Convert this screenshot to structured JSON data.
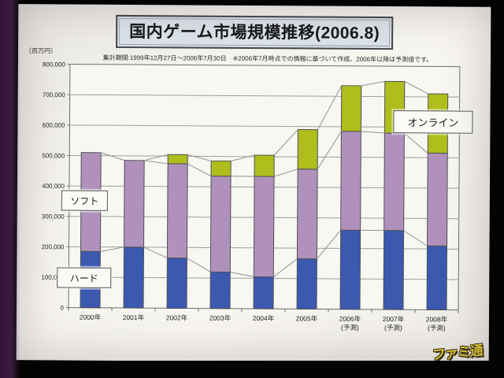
{
  "slide": {
    "title": "国内ゲーム市場規模推移(2006.8)",
    "subtitle": "集計期間:1999年12月27日～2006年7月30日　※2006年7月時点での情報に基づいて作成、2006年以降は予測値です。",
    "logo_text": "ファミ通"
  },
  "chart_data": {
    "type": "bar",
    "stacked": true,
    "title": "国内ゲーム市場規模推移(2006.8)",
    "unit_label": "〔百万円〕",
    "categories": [
      "2000年",
      "2001年",
      "2002年",
      "2003年",
      "2004年",
      "2005年",
      "2006年",
      "2007年",
      "2008年"
    ],
    "category_notes": [
      "",
      "",
      "",
      "",
      "",
      "",
      "(予測)",
      "(予測)",
      "(予測)"
    ],
    "series": [
      {
        "name": "ハード",
        "color": "#3c59b0",
        "values": [
          185000,
          200000,
          165000,
          120000,
          105000,
          165000,
          260000,
          260000,
          210000
        ]
      },
      {
        "name": "ソフト",
        "color": "#b091bb",
        "values": [
          325000,
          285000,
          310000,
          315000,
          330000,
          295000,
          325000,
          320000,
          305000
        ]
      },
      {
        "name": "オンライン",
        "color": "#afbe1c",
        "values": [
          0,
          0,
          30000,
          50000,
          70000,
          130000,
          150000,
          170000,
          195000
        ]
      }
    ],
    "totals": [
      510000,
      485000,
      505000,
      485000,
      505000,
      590000,
      735000,
      750000,
      710000
    ],
    "ylim": [
      0,
      800000
    ],
    "ytick_step": 100000,
    "grid": "horizontal",
    "series_lines": true,
    "legend": "none",
    "annotations": [
      "ソフト",
      "ハード",
      "オンライン"
    ],
    "colors": {
      "axis": "#6a6e72",
      "gridline": "#9aa0a5",
      "segment_border": "#4e5156",
      "series_line": "#8d9297",
      "plot_bg": "#f8f7f2"
    }
  }
}
